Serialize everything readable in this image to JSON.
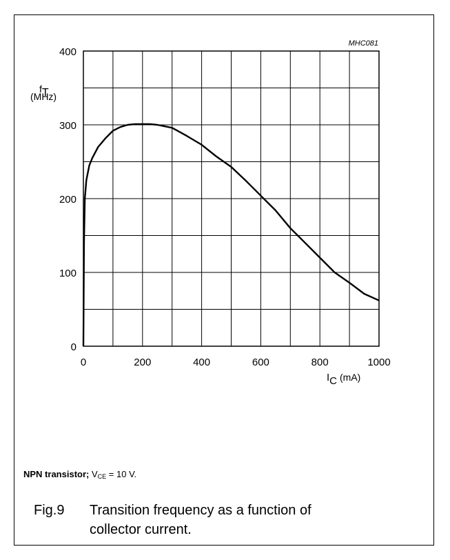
{
  "chart_data": {
    "type": "line",
    "code": "MHC081",
    "ylabel_symbol": "f",
    "ylabel_sub": "T",
    "yunit": "(MHz)",
    "xlabel_symbol": "I",
    "xlabel_sub": "C",
    "xunit": "(mA)",
    "xlim": [
      0,
      1000
    ],
    "ylim": [
      0,
      400
    ],
    "xticks": [
      "0",
      "200",
      "400",
      "600",
      "800",
      "1000"
    ],
    "yticks": [
      "0",
      "100",
      "200",
      "300",
      "400"
    ],
    "grid": true,
    "series": [
      {
        "x": [
          0,
          2,
          5,
          10,
          20,
          30,
          50,
          75,
          100,
          125,
          150,
          175,
          200,
          225,
          250,
          300,
          350,
          400,
          450,
          500,
          550,
          600,
          650,
          700,
          750,
          800,
          850,
          900,
          950,
          1000
        ],
        "y": [
          0,
          140,
          200,
          225,
          245,
          255,
          270,
          282,
          292,
          297,
          300,
          301,
          301,
          301,
          300,
          296,
          285,
          273,
          257,
          243,
          224,
          204,
          184,
          160,
          140,
          120,
          100,
          86,
          71,
          62
        ]
      }
    ]
  },
  "footnote": {
    "bold": "NPN transistor;",
    "param": "V",
    "param_sub": "CE",
    "rest": "= 10 V."
  },
  "caption": {
    "fig": "Fig.9",
    "line1": "Transition frequency as a function of",
    "line2": "collector current."
  }
}
